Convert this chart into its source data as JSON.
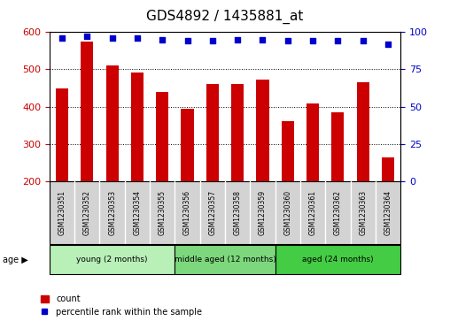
{
  "title": "GDS4892 / 1435881_at",
  "samples": [
    "GSM1230351",
    "GSM1230352",
    "GSM1230353",
    "GSM1230354",
    "GSM1230355",
    "GSM1230356",
    "GSM1230357",
    "GSM1230358",
    "GSM1230359",
    "GSM1230360",
    "GSM1230361",
    "GSM1230362",
    "GSM1230363",
    "GSM1230364"
  ],
  "counts": [
    450,
    575,
    510,
    492,
    440,
    395,
    460,
    460,
    472,
    362,
    408,
    385,
    465,
    265
  ],
  "percentile_ranks": [
    96,
    97,
    96,
    96,
    95,
    94,
    94,
    95,
    95,
    94,
    94,
    94,
    94,
    92
  ],
  "ylim_left": [
    200,
    600
  ],
  "ylim_right": [
    0,
    100
  ],
  "yticks_left": [
    200,
    300,
    400,
    500,
    600
  ],
  "yticks_right": [
    0,
    25,
    50,
    75,
    100
  ],
  "bar_color": "#cc0000",
  "dot_color": "#0000cc",
  "background_labels": "#d3d3d3",
  "groups": [
    {
      "label": "young (2 months)",
      "start": 0,
      "end": 4,
      "color": "#b8f0b8"
    },
    {
      "label": "middle aged (12 months)",
      "start": 5,
      "end": 8,
      "color": "#7dd87d"
    },
    {
      "label": "aged (24 months)",
      "start": 9,
      "end": 13,
      "color": "#44cc44"
    }
  ],
  "age_label": "age",
  "legend_count_label": "count",
  "legend_percentile_label": "percentile rank within the sample",
  "left_axis_color": "#cc0000",
  "right_axis_color": "#0000cc",
  "title_fontsize": 11,
  "tick_fontsize": 8,
  "bar_width": 0.5
}
